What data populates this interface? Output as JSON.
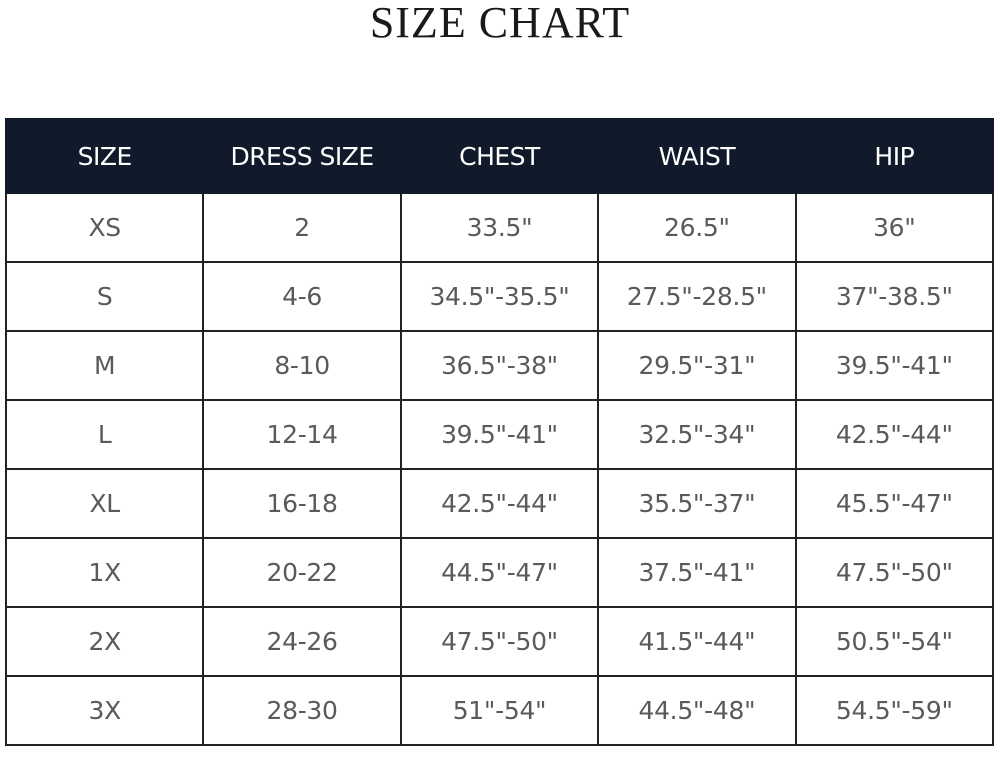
{
  "title": "SIZE CHART",
  "colors": {
    "header_bg": "#111a2b",
    "header_text": "#ffffff",
    "cell_text": "#5a5a5a",
    "border": "#222222"
  },
  "headers": [
    "SIZE",
    "DRESS SIZE",
    "CHEST",
    "WAIST",
    "HIP"
  ],
  "rows": [
    [
      "XS",
      "2",
      "33.5\"",
      "26.5\"",
      "36\""
    ],
    [
      "S",
      "4-6",
      "34.5\"-35.5\"",
      "27.5\"-28.5\"",
      "37\"-38.5\""
    ],
    [
      "M",
      "8-10",
      "36.5\"-38\"",
      "29.5\"-31\"",
      "39.5\"-41\""
    ],
    [
      "L",
      "12-14",
      "39.5\"-41\"",
      "32.5\"-34\"",
      "42.5\"-44\""
    ],
    [
      "XL",
      "16-18",
      "42.5\"-44\"",
      "35.5\"-37\"",
      "45.5\"-47\""
    ],
    [
      "1X",
      "20-22",
      "44.5\"-47\"",
      "37.5\"-41\"",
      "47.5\"-50\""
    ],
    [
      "2X",
      "24-26",
      "47.5\"-50\"",
      "41.5\"-44\"",
      "50.5\"-54\""
    ],
    [
      "3X",
      "28-30",
      "51\"-54\"",
      "44.5\"-48\"",
      "54.5\"-59\""
    ]
  ]
}
